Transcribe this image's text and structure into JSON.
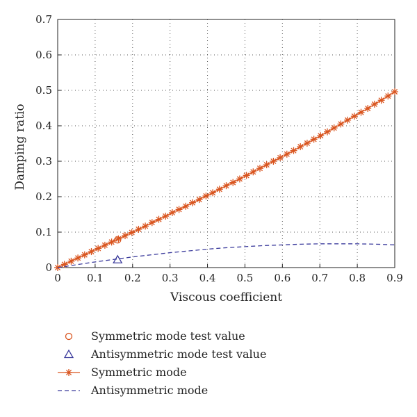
{
  "chart_data": {
    "type": "line",
    "xlabel": "Viscous coefficient",
    "ylabel": "Damping ratio",
    "xlim": [
      0,
      0.9
    ],
    "ylim": [
      0,
      0.7
    ],
    "xticks": [
      "0",
      "0.1",
      "0.2",
      "0.3",
      "0.4",
      "0.5",
      "0.6",
      "0.7",
      "0.8",
      "0.9"
    ],
    "yticks": [
      "0",
      "0.1",
      "0.2",
      "0.3",
      "0.4",
      "0.5",
      "0.6",
      "0.7"
    ],
    "grid": true,
    "legend_placement": "below",
    "series": [
      {
        "name": "Symmetric mode test value",
        "marker": "circle",
        "line": "none",
        "color": "#d9541e",
        "x": [
          0.16
        ],
        "y": [
          0.078
        ]
      },
      {
        "name": "Antisymmetric mode test value",
        "marker": "triangle",
        "line": "none",
        "color": "#3b3b9c",
        "x": [
          0.16
        ],
        "y": [
          0.022
        ]
      },
      {
        "name": "Symmetric mode",
        "marker": "star",
        "line": "solid",
        "color": "#d9541e",
        "x": [
          0,
          0.018,
          0.036,
          0.054,
          0.072,
          0.09,
          0.108,
          0.126,
          0.144,
          0.162,
          0.18,
          0.198,
          0.216,
          0.234,
          0.252,
          0.27,
          0.288,
          0.306,
          0.324,
          0.342,
          0.36,
          0.378,
          0.396,
          0.414,
          0.432,
          0.45,
          0.468,
          0.486,
          0.504,
          0.522,
          0.54,
          0.558,
          0.576,
          0.594,
          0.612,
          0.63,
          0.648,
          0.666,
          0.684,
          0.702,
          0.72,
          0.738,
          0.756,
          0.774,
          0.792,
          0.81,
          0.828,
          0.846,
          0.864,
          0.882,
          0.9
        ],
        "y": [
          0,
          0.009,
          0.018,
          0.027,
          0.036,
          0.045,
          0.054,
          0.063,
          0.072,
          0.081,
          0.09,
          0.099,
          0.108,
          0.117,
          0.127,
          0.136,
          0.145,
          0.155,
          0.164,
          0.173,
          0.183,
          0.192,
          0.202,
          0.211,
          0.221,
          0.231,
          0.24,
          0.25,
          0.26,
          0.27,
          0.28,
          0.29,
          0.3,
          0.31,
          0.32,
          0.33,
          0.341,
          0.351,
          0.362,
          0.372,
          0.383,
          0.394,
          0.405,
          0.416,
          0.427,
          0.438,
          0.449,
          0.461,
          0.472,
          0.484,
          0.496
        ]
      },
      {
        "name": "Antisymmetric mode",
        "marker": "none",
        "line": "dashed",
        "color": "#3b3b9c",
        "x": [
          0,
          0.05,
          0.1,
          0.15,
          0.2,
          0.25,
          0.3,
          0.35,
          0.4,
          0.45,
          0.5,
          0.55,
          0.6,
          0.65,
          0.7,
          0.75,
          0.8,
          0.85,
          0.9
        ],
        "y": [
          0,
          0.008,
          0.016,
          0.023,
          0.03,
          0.036,
          0.042,
          0.047,
          0.052,
          0.056,
          0.059,
          0.062,
          0.064,
          0.066,
          0.067,
          0.067,
          0.067,
          0.066,
          0.064
        ]
      }
    ]
  }
}
